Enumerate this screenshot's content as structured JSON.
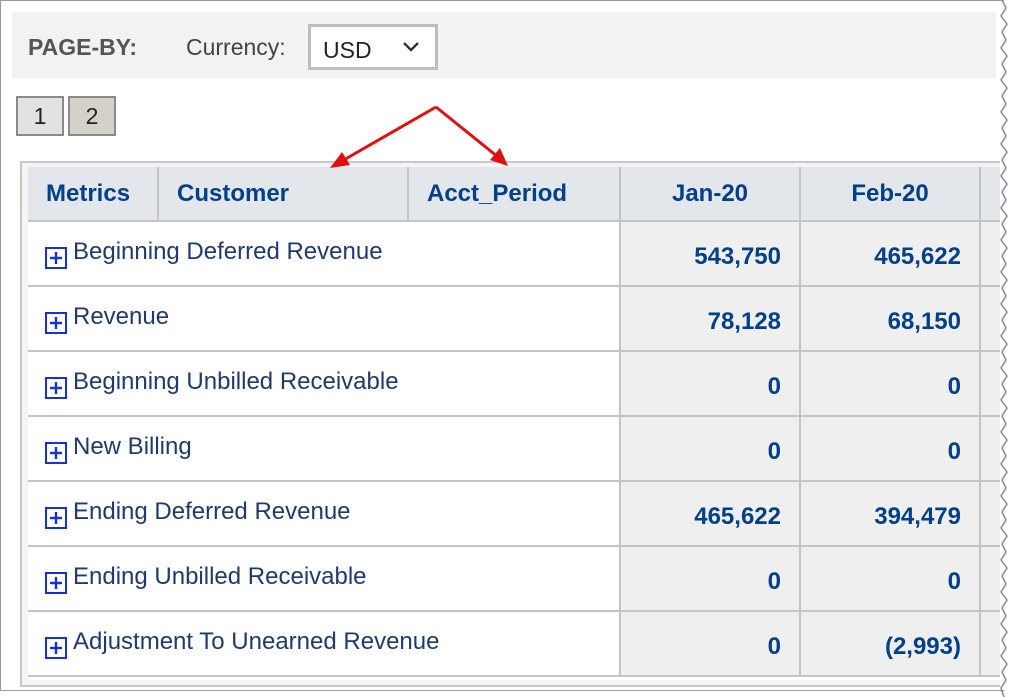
{
  "pageby": {
    "label": "PAGE-BY:",
    "currency_label": "Currency:",
    "currency_value": "USD"
  },
  "pages": [
    "1",
    "2"
  ],
  "grid": {
    "headers": {
      "metrics": "Metrics",
      "customer": "Customer",
      "acct_period": "Acct_Period",
      "col1": "Jan-20",
      "col2": "Feb-20"
    },
    "rows": [
      {
        "label": "Beginning Deferred Revenue",
        "jan": "543,750",
        "feb": "465,622"
      },
      {
        "label": "Revenue",
        "jan": "78,128",
        "feb": "68,150"
      },
      {
        "label": "Beginning Unbilled Receivable",
        "jan": "0",
        "feb": "0"
      },
      {
        "label": "New Billing",
        "jan": "0",
        "feb": "0"
      },
      {
        "label": "Ending Deferred Revenue",
        "jan": "465,622",
        "feb": "394,479"
      },
      {
        "label": "Ending Unbilled Receivable",
        "jan": "0",
        "feb": "0"
      },
      {
        "label": "Adjustment To Unearned Revenue",
        "jan": "0",
        "feb": "(2,993)"
      }
    ]
  },
  "colors": {
    "header_text": "#003f8a",
    "annotation_arrow": "#e01010"
  },
  "icons": {
    "expand": "plus-box-icon",
    "dropdown": "chevron-down-icon",
    "annotation": "red-arrow-icon"
  }
}
